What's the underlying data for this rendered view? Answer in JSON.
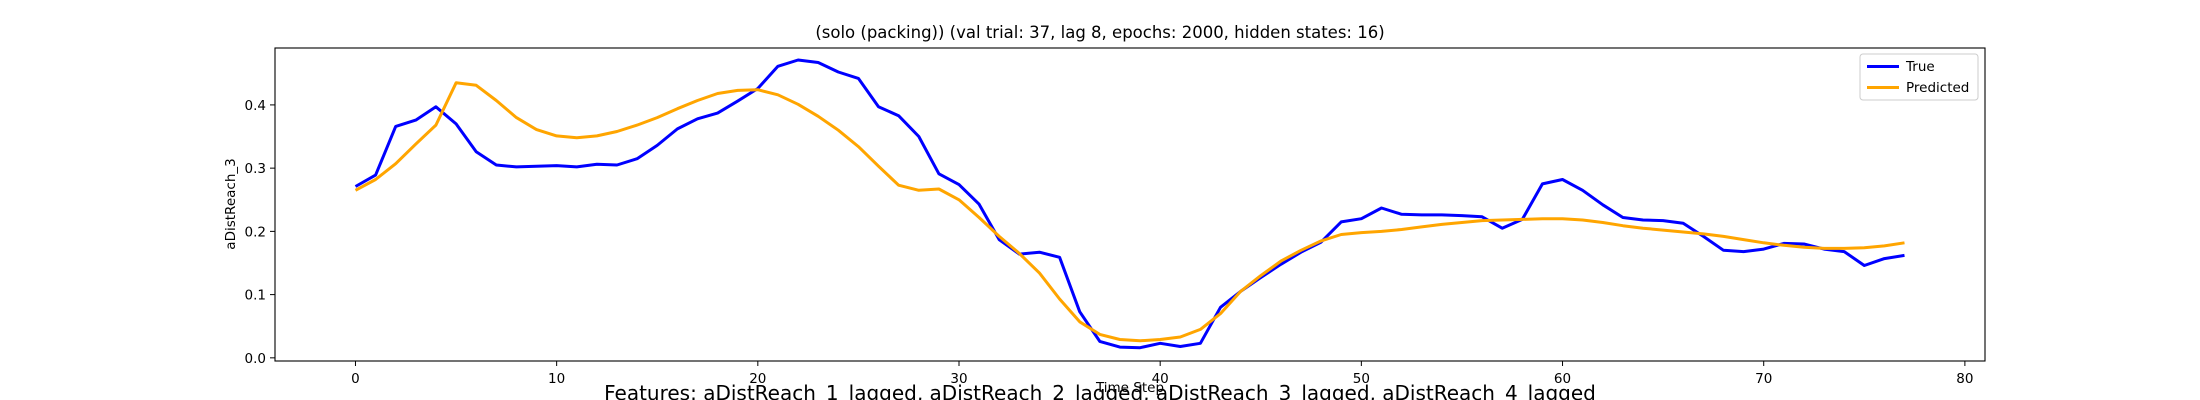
{
  "chart_data": {
    "type": "line",
    "title": "(solo (packing)) (val trial: 37, lag 8, epochs: 2000, hidden states: 16)",
    "xlabel": "Time Step",
    "ylabel": "aDistReach_3",
    "footer": "Features: aDistReach_1_lagged, aDistReach_2_lagged, aDistReach_3_lagged, aDistReach_4_lagged",
    "xlim": [
      -4,
      81
    ],
    "ylim": [
      -0.005,
      0.49
    ],
    "xticks": [
      0,
      10,
      20,
      30,
      40,
      50,
      60,
      70,
      80
    ],
    "yticks": [
      0.0,
      0.1,
      0.2,
      0.3,
      0.4
    ],
    "xtick_labels": [
      "0",
      "10",
      "20",
      "30",
      "40",
      "50",
      "60",
      "70",
      "80"
    ],
    "ytick_labels": [
      "0.0",
      "0.1",
      "0.2",
      "0.3",
      "0.4"
    ],
    "grid": false,
    "legend_position": "top-right",
    "series": [
      {
        "name": "True",
        "color": "#0000ff",
        "x": [
          0,
          1,
          2,
          3,
          4,
          5,
          6,
          7,
          8,
          9,
          10,
          11,
          12,
          13,
          14,
          15,
          16,
          17,
          18,
          19,
          20,
          21,
          22,
          23,
          24,
          25,
          26,
          27,
          28,
          29,
          30,
          31,
          32,
          33,
          34,
          35,
          36,
          37,
          38,
          39,
          40,
          41,
          42,
          43,
          44,
          45,
          46,
          47,
          48,
          49,
          50,
          51,
          52,
          53,
          54,
          55,
          56,
          57,
          58,
          59,
          60,
          61,
          62,
          63,
          64,
          65,
          66,
          67,
          68,
          69,
          70,
          71,
          72,
          73,
          74,
          75,
          76,
          77
        ],
        "values": [
          0.271,
          0.289,
          0.366,
          0.376,
          0.397,
          0.37,
          0.326,
          0.305,
          0.302,
          0.303,
          0.304,
          0.302,
          0.306,
          0.305,
          0.315,
          0.336,
          0.362,
          0.378,
          0.387,
          0.406,
          0.426,
          0.461,
          0.471,
          0.467,
          0.452,
          0.442,
          0.397,
          0.383,
          0.35,
          0.291,
          0.274,
          0.243,
          0.187,
          0.164,
          0.167,
          0.159,
          0.073,
          0.026,
          0.017,
          0.016,
          0.023,
          0.018,
          0.023,
          0.08,
          0.105,
          0.127,
          0.148,
          0.167,
          0.183,
          0.215,
          0.22,
          0.237,
          0.227,
          0.226,
          0.226,
          0.225,
          0.223,
          0.205,
          0.219,
          0.275,
          0.282,
          0.265,
          0.242,
          0.222,
          0.218,
          0.217,
          0.213,
          0.192,
          0.17,
          0.168,
          0.172,
          0.181,
          0.18,
          0.172,
          0.168,
          0.146,
          0.157,
          0.162
        ]
      },
      {
        "name": "Predicted",
        "color": "#ffa500",
        "x": [
          0,
          1,
          2,
          3,
          4,
          5,
          6,
          7,
          8,
          9,
          10,
          11,
          12,
          13,
          14,
          15,
          16,
          17,
          18,
          19,
          20,
          21,
          22,
          23,
          24,
          25,
          26,
          27,
          28,
          29,
          30,
          31,
          32,
          33,
          34,
          35,
          36,
          37,
          38,
          39,
          40,
          41,
          42,
          43,
          44,
          45,
          46,
          47,
          48,
          49,
          50,
          51,
          52,
          53,
          54,
          55,
          56,
          57,
          58,
          59,
          60,
          61,
          62,
          63,
          64,
          65,
          66,
          67,
          68,
          69,
          70,
          71,
          72,
          73,
          74,
          75,
          76,
          77
        ],
        "values": [
          0.265,
          0.282,
          0.307,
          0.338,
          0.368,
          0.435,
          0.431,
          0.407,
          0.38,
          0.361,
          0.351,
          0.348,
          0.351,
          0.358,
          0.368,
          0.38,
          0.394,
          0.407,
          0.418,
          0.423,
          0.424,
          0.416,
          0.401,
          0.382,
          0.36,
          0.334,
          0.303,
          0.273,
          0.265,
          0.267,
          0.25,
          0.222,
          0.192,
          0.165,
          0.134,
          0.093,
          0.057,
          0.037,
          0.029,
          0.027,
          0.029,
          0.033,
          0.045,
          0.07,
          0.105,
          0.13,
          0.153,
          0.17,
          0.185,
          0.195,
          0.198,
          0.2,
          0.203,
          0.207,
          0.211,
          0.214,
          0.217,
          0.218,
          0.219,
          0.22,
          0.22,
          0.218,
          0.214,
          0.209,
          0.205,
          0.202,
          0.199,
          0.196,
          0.192,
          0.187,
          0.182,
          0.178,
          0.175,
          0.173,
          0.173,
          0.174,
          0.177,
          0.182
        ]
      }
    ]
  }
}
